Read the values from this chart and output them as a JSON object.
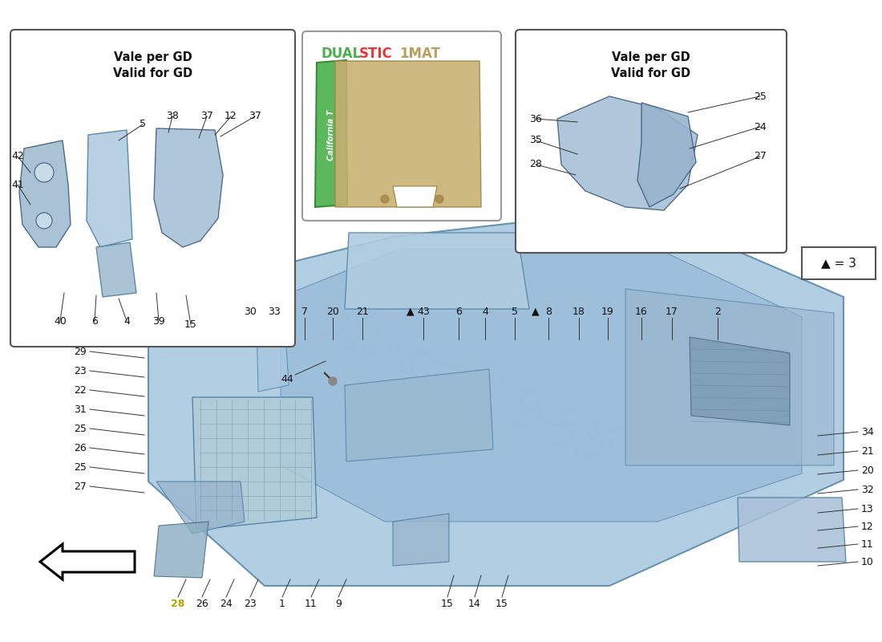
{
  "background_color": "#ffffff",
  "watermark_text": "since1985",
  "main_part_color": "#a8c8e0",
  "line_color": "#333333",
  "text_color": "#222222",
  "legend_green_color": "#5cb85c",
  "legend_tan_color": "#c8b070",
  "figwidth": 11.0,
  "figheight": 8.0,
  "left_inset_title": "Vale per GD\nValid for GD",
  "right_inset_title": "Vale per GD\nValid for GD",
  "legend_dual_color": "#4caf50",
  "legend_stic_color": "#e53935",
  "legend_1mat_color": "#b8a060",
  "triangle_label": "▲ = 3",
  "left_callouts": [
    [
      "42",
      22,
      600
    ],
    [
      "41",
      22,
      560
    ],
    [
      "40",
      75,
      412
    ],
    [
      "6",
      120,
      412
    ],
    [
      "4",
      160,
      412
    ],
    [
      "5",
      178,
      165
    ],
    [
      "38",
      215,
      148
    ],
    [
      "39",
      200,
      405
    ],
    [
      "15",
      238,
      412
    ],
    [
      "37",
      258,
      148
    ],
    [
      "12",
      288,
      148
    ],
    [
      "37",
      318,
      148
    ]
  ],
  "right_callouts": [
    [
      "36",
      668,
      648
    ],
    [
      "35",
      668,
      620
    ],
    [
      "28",
      668,
      590
    ],
    [
      "25",
      948,
      665
    ],
    [
      "24",
      948,
      630
    ],
    [
      "27",
      948,
      600
    ]
  ],
  "top_row": [
    [
      "30",
      312,
      388
    ],
    [
      "33",
      342,
      388
    ],
    [
      "7",
      380,
      388
    ],
    [
      "20",
      415,
      388
    ],
    [
      "21",
      452,
      388
    ],
    [
      "▲",
      512,
      388
    ],
    [
      "43",
      528,
      388
    ],
    [
      "6",
      572,
      388
    ],
    [
      "4",
      605,
      388
    ],
    [
      "5",
      642,
      388
    ],
    [
      "▲",
      668,
      388
    ],
    [
      "8",
      684,
      388
    ],
    [
      "18",
      722,
      388
    ],
    [
      "19",
      758,
      388
    ],
    [
      "16",
      800,
      388
    ],
    [
      "17",
      838,
      388
    ],
    [
      "2",
      895,
      388
    ]
  ],
  "left_side_callouts": [
    [
      "29",
      100,
      438
    ],
    [
      "23",
      100,
      462
    ],
    [
      "22",
      100,
      486
    ],
    [
      "31",
      100,
      510
    ],
    [
      "25",
      100,
      534
    ],
    [
      "26",
      100,
      558
    ],
    [
      "25",
      100,
      582
    ],
    [
      "27",
      100,
      606
    ]
  ],
  "bottom_center": [
    [
      "28",
      222,
      752
    ],
    [
      "26",
      252,
      752
    ],
    [
      "24",
      282,
      752
    ],
    [
      "23",
      312,
      752
    ],
    [
      "1",
      352,
      752
    ],
    [
      "11",
      388,
      752
    ],
    [
      "9",
      422,
      752
    ]
  ],
  "bottom_mid": [
    [
      "15",
      558,
      752
    ],
    [
      "14",
      592,
      752
    ],
    [
      "15",
      626,
      752
    ]
  ],
  "right_side_callouts": [
    [
      "34",
      1082,
      538
    ],
    [
      "21",
      1082,
      562
    ],
    [
      "20",
      1082,
      586
    ],
    [
      "32",
      1082,
      610
    ],
    [
      "13",
      1082,
      634
    ],
    [
      "12",
      1082,
      656
    ],
    [
      "11",
      1082,
      678
    ],
    [
      "10",
      1082,
      700
    ]
  ],
  "label_44": [
    358,
    472
  ]
}
